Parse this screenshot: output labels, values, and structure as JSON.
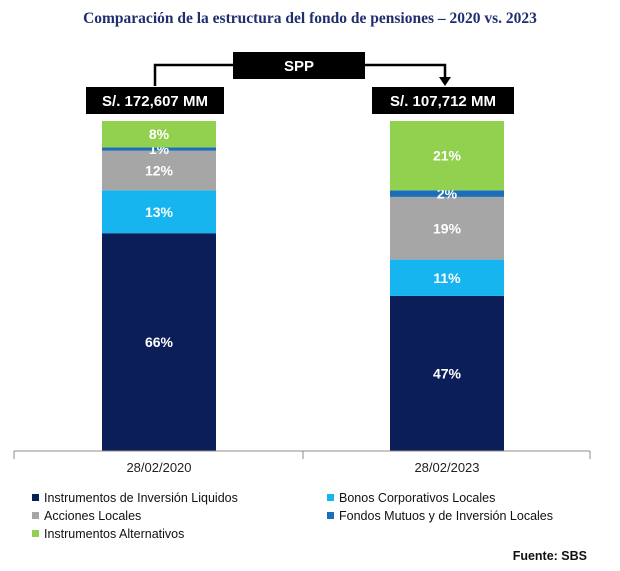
{
  "title": "Comparación de la estructura del fondo de pensiones – 2020 vs. 2023",
  "header_label": "SPP",
  "source": "Fuente: SBS",
  "chart_data": {
    "type": "bar",
    "stacked": true,
    "orientation": "vertical",
    "categories": [
      "28/02/2020",
      "28/02/2023"
    ],
    "totals": [
      "S/. 172,607 MM",
      "S/. 107,712 MM"
    ],
    "ylim": [
      0,
      100
    ],
    "unit": "%",
    "series": [
      {
        "name": "Instrumentos de Inversión Liquidos",
        "color": "#0b1e57",
        "label_color": "#ffffff",
        "values": [
          66,
          47
        ]
      },
      {
        "name": "Bonos Corporativos Locales",
        "color": "#17b5ef",
        "label_color": "#ffffff",
        "values": [
          13,
          11
        ]
      },
      {
        "name": "Acciones Locales",
        "color": "#a6a6a6",
        "label_color": "#ffffff",
        "values": [
          12,
          19
        ]
      },
      {
        "name": "Fondos Mutuos y de Inversión Locales",
        "color": "#1a6fb8",
        "label_color": "#ffffff",
        "values": [
          1,
          2
        ]
      },
      {
        "name": "Instrumentos Alternativos",
        "color": "#92d050",
        "label_color": "#ffffff",
        "values": [
          8,
          21
        ]
      }
    ],
    "legend_position": "bottom"
  }
}
